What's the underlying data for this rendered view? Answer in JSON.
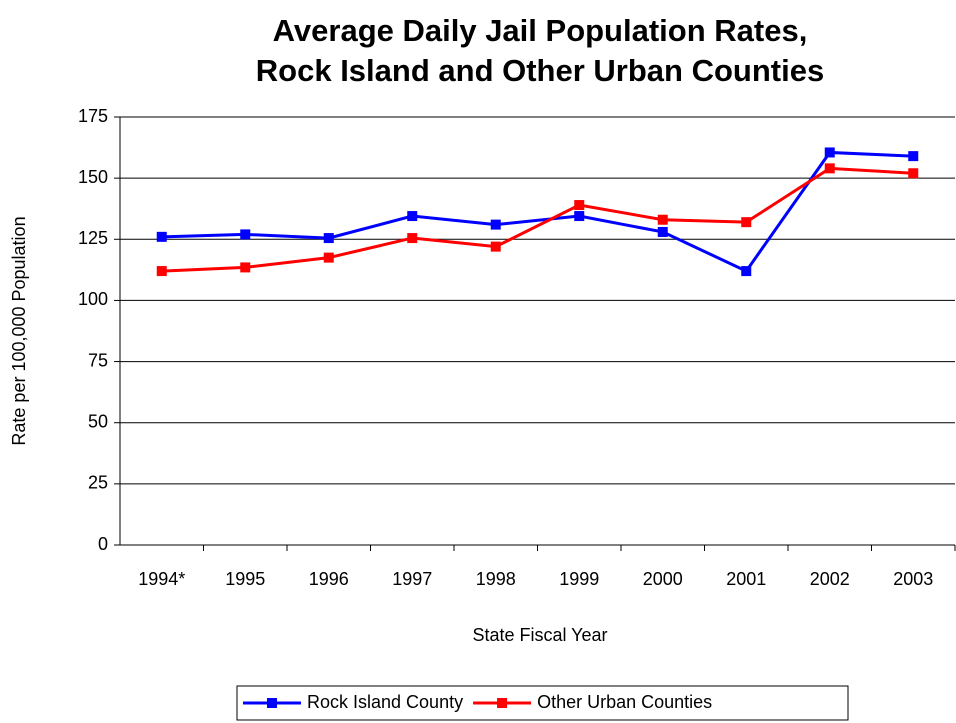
{
  "chart_data": {
    "type": "line",
    "title": [
      "Average Daily Jail Population Rates,",
      "Rock Island and Other Urban Counties"
    ],
    "x_label": "State Fiscal Year",
    "y_label": "Rate per 100,000 Population",
    "categories": [
      "1994*",
      "1995",
      "1996",
      "1997",
      "1998",
      "1999",
      "2000",
      "2001",
      "2002",
      "2003"
    ],
    "series": [
      {
        "name": "Rock Island County",
        "color": "#0000ff",
        "values": [
          126,
          127,
          125.5,
          134.5,
          131,
          134.5,
          128,
          112,
          160.5,
          159
        ]
      },
      {
        "name": "Other Urban Counties",
        "color": "#ff0000",
        "values": [
          112,
          113.5,
          117.5,
          125.5,
          122,
          139,
          133,
          132,
          154,
          152
        ]
      }
    ],
    "ylim": [
      0,
      175
    ],
    "yticks": [
      0,
      25,
      50,
      75,
      100,
      125,
      150,
      175
    ],
    "grid": true,
    "legend": "bottom"
  }
}
